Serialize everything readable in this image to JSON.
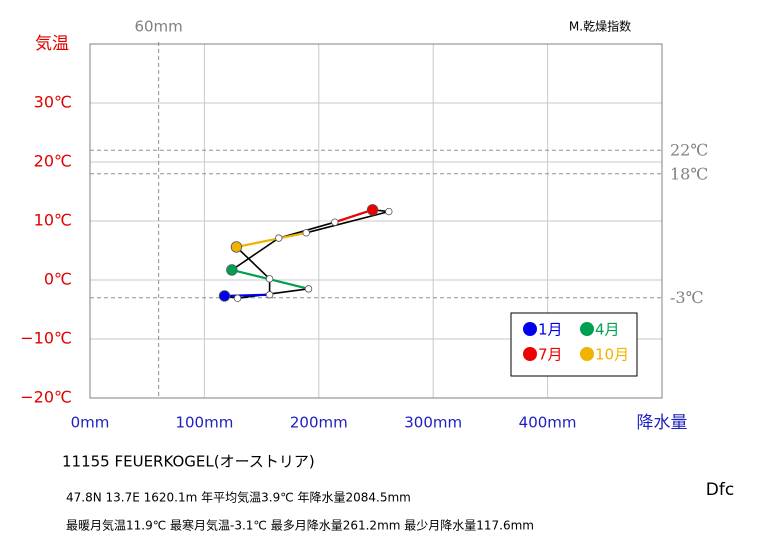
{
  "chart_data": {
    "type": "hythergraph",
    "y_label": "気温",
    "x_label": "降水量",
    "dryness_label": "M.乾燥指数",
    "x": [
      117.6,
      129,
      191,
      124,
      165,
      214,
      247,
      261.2,
      189,
      128,
      157,
      157
    ],
    "y": [
      -2.7,
      -3.1,
      -1.5,
      1.7,
      7.1,
      9.8,
      11.9,
      11.6,
      8.0,
      5.6,
      0.2,
      -2.5
    ],
    "line_color": "#000000",
    "highlights": [
      {
        "index": 0,
        "name": "1月",
        "color": "#0000ee"
      },
      {
        "index": 3,
        "name": "4月",
        "color": "#00a050"
      },
      {
        "index": 6,
        "name": "7月",
        "color": "#ee0000"
      },
      {
        "index": 9,
        "name": "10月",
        "color": "#f0b400"
      }
    ],
    "xlim": [
      0,
      500
    ],
    "ylim": [
      -20,
      40
    ],
    "xticks": [
      {
        "value": 0,
        "label": "0mm"
      },
      {
        "value": 100,
        "label": "100mm"
      },
      {
        "value": 200,
        "label": "200mm"
      },
      {
        "value": 300,
        "label": "300mm"
      },
      {
        "value": 400,
        "label": "400mm"
      }
    ],
    "yticks": [
      {
        "value": -20,
        "label": "−20℃"
      },
      {
        "value": -10,
        "label": "−10℃"
      },
      {
        "value": 0,
        "label": "0℃"
      },
      {
        "value": 10,
        "label": "10℃"
      },
      {
        "value": 20,
        "label": "20℃"
      },
      {
        "value": 30,
        "label": "30℃"
      }
    ],
    "ref_lines": [
      {
        "value": 22,
        "label": "22℃"
      },
      {
        "value": 18,
        "label": "18℃"
      },
      {
        "value": -3,
        "label": "-3℃"
      }
    ],
    "vref_line": {
      "value": 60,
      "label": "60mm"
    },
    "grid": true,
    "station": "11155  FEUERKOGEL(オーストリア)",
    "info_lines": [
      "47.8N  13.7E 1620.1m  年平均気温3.9℃ 年降水量2084.5mm",
      "最暖月気温11.9℃ 最寒月気温-3.1℃ 最多月降水量261.2mm 最少月降水量117.6mm"
    ],
    "climate_class": "Dfc"
  }
}
